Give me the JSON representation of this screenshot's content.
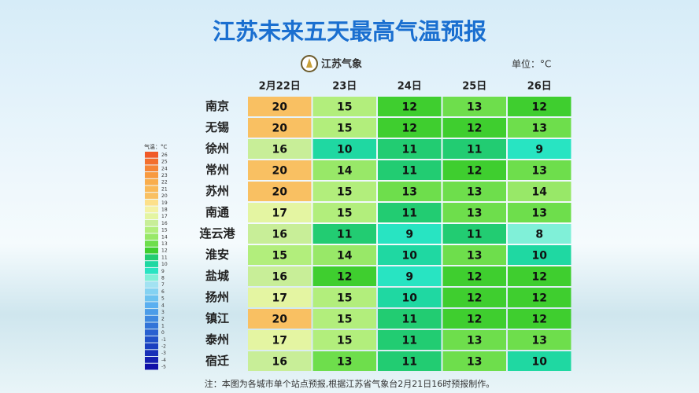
{
  "header": {
    "title": "江苏未来五天最高气温预报",
    "logo_text": "江苏气象",
    "unit": "单位：°C"
  },
  "table": {
    "columns": [
      "2月22日",
      "23日",
      "24日",
      "25日",
      "26日"
    ],
    "rows": [
      {
        "city": "南京",
        "values": [
          20,
          15,
          12,
          13,
          12
        ]
      },
      {
        "city": "无锡",
        "values": [
          20,
          15,
          12,
          12,
          13
        ]
      },
      {
        "city": "徐州",
        "values": [
          16,
          10,
          11,
          11,
          9
        ]
      },
      {
        "city": "常州",
        "values": [
          20,
          14,
          11,
          12,
          13
        ]
      },
      {
        "city": "苏州",
        "values": [
          20,
          15,
          13,
          13,
          14
        ]
      },
      {
        "city": "南通",
        "values": [
          17,
          15,
          11,
          13,
          13
        ]
      },
      {
        "city": "连云港",
        "values": [
          16,
          11,
          9,
          11,
          8
        ]
      },
      {
        "city": "淮安",
        "values": [
          15,
          14,
          10,
          13,
          10
        ]
      },
      {
        "city": "盐城",
        "values": [
          16,
          12,
          9,
          12,
          12
        ]
      },
      {
        "city": "扬州",
        "values": [
          17,
          15,
          10,
          12,
          12
        ]
      },
      {
        "city": "镇江",
        "values": [
          20,
          15,
          11,
          12,
          12
        ]
      },
      {
        "city": "泰州",
        "values": [
          17,
          15,
          11,
          13,
          13
        ]
      },
      {
        "city": "宿迁",
        "values": [
          16,
          13,
          11,
          13,
          10
        ]
      }
    ]
  },
  "legend": {
    "title": "气温：°C",
    "items": [
      {
        "value": 26,
        "color": "#f05a28"
      },
      {
        "value": 25,
        "color": "#f36f2e"
      },
      {
        "value": 24,
        "color": "#f68536"
      },
      {
        "value": 23,
        "color": "#f89a40"
      },
      {
        "value": 22,
        "color": "#f9ad4c"
      },
      {
        "value": 21,
        "color": "#fab957"
      },
      {
        "value": 20,
        "color": "#f9c062"
      },
      {
        "value": 19,
        "color": "#fde08a"
      },
      {
        "value": 18,
        "color": "#f4f2a4"
      },
      {
        "value": 17,
        "color": "#e4f5a2"
      },
      {
        "value": 16,
        "color": "#c8ee98"
      },
      {
        "value": 15,
        "color": "#b2ee7c"
      },
      {
        "value": 14,
        "color": "#98e868"
      },
      {
        "value": 13,
        "color": "#6ede4c"
      },
      {
        "value": 12,
        "color": "#3fce2f"
      },
      {
        "value": 11,
        "color": "#22cc72"
      },
      {
        "value": 10,
        "color": "#1fd8a2"
      },
      {
        "value": 9,
        "color": "#28e4c2"
      },
      {
        "value": 8,
        "color": "#80f0d8"
      },
      {
        "value": 7,
        "color": "#a2e2f2"
      },
      {
        "value": 6,
        "color": "#84d2f2"
      },
      {
        "value": 5,
        "color": "#6cc2f0"
      },
      {
        "value": 4,
        "color": "#5aaff0"
      },
      {
        "value": 3,
        "color": "#4b9ce8"
      },
      {
        "value": 2,
        "color": "#3e88e0"
      },
      {
        "value": 1,
        "color": "#3274d8"
      },
      {
        "value": 0,
        "color": "#2860d0"
      },
      {
        "value": -1,
        "color": "#2050c8"
      },
      {
        "value": -2,
        "color": "#1a40c0"
      },
      {
        "value": -3,
        "color": "#1830b8"
      },
      {
        "value": -4,
        "color": "#1520b0"
      },
      {
        "value": -5,
        "color": "#1010a8"
      }
    ]
  },
  "footer": {
    "note": "注：本图为各城市单个站点预报,根据江苏省气象台2月21日16时预报制作。"
  }
}
